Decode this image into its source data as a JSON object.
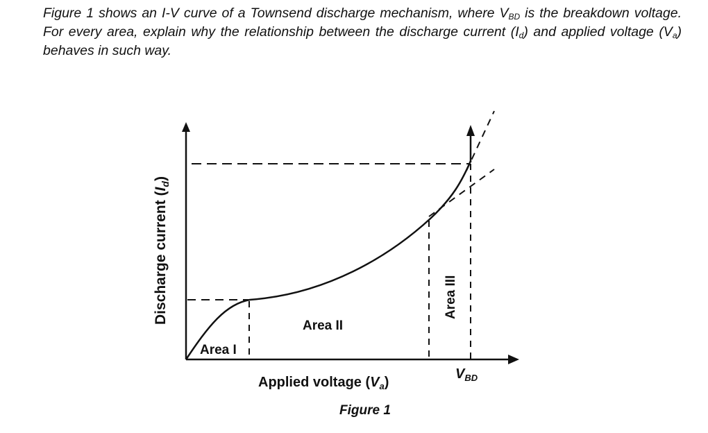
{
  "question": {
    "part1": "Figure 1 shows an I-V curve of a Townsend discharge mechanism, where V",
    "sub_bd": "BD",
    "part2": " is the breakdown voltage. For every area, explain why the relationship between the discharge current (I",
    "sub_d": "d",
    "part3": ") and applied voltage (V",
    "sub_a": "a",
    "part4": ") behaves in such way."
  },
  "diagram": {
    "y_axis_label_main": "Discharge current (",
    "y_axis_label_sym": "I",
    "y_axis_label_sub": "d",
    "y_axis_label_end": ")",
    "x_axis_label_main": "Applied voltage (",
    "x_axis_label_sym": "V",
    "x_axis_label_sub": "a",
    "x_axis_label_end": ")",
    "vbd_sym": "V",
    "vbd_sub": "BD",
    "area1": "Area I",
    "area2": "Area II",
    "area3": "Area III",
    "caption": "Figure 1"
  }
}
